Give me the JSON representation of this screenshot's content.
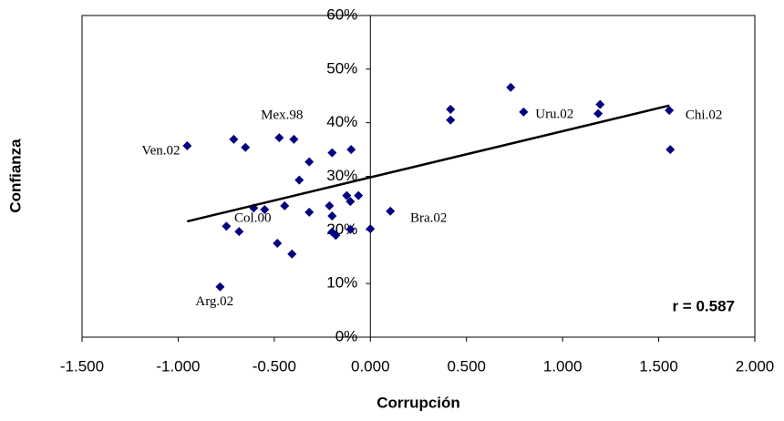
{
  "chart_data": {
    "type": "scatter",
    "x_label": "Corrupción",
    "y_label": "Confianza",
    "color": "#000080",
    "xlim": [
      -1.5,
      2.0
    ],
    "ylim": [
      0,
      60
    ],
    "xticks": [
      {
        "value": -1.5,
        "label": "-1.500"
      },
      {
        "value": -1.0,
        "label": "-1.000"
      },
      {
        "value": -0.5,
        "label": "-0.500"
      },
      {
        "value": 0,
        "label": "0.000"
      },
      {
        "value": 0.5,
        "label": "0.500"
      },
      {
        "value": 1.0,
        "label": "1.000"
      },
      {
        "value": 1.5,
        "label": "1.500"
      },
      {
        "value": 2.0,
        "label": "2.000"
      }
    ],
    "yticks": [
      {
        "value": 0,
        "label": "0%"
      },
      {
        "value": 10,
        "label": "10%"
      },
      {
        "value": 20,
        "label": "20%"
      },
      {
        "value": 30,
        "label": "30%"
      },
      {
        "value": 40,
        "label": "40%"
      },
      {
        "value": 50,
        "label": "50%"
      },
      {
        "value": 60,
        "label": "60%"
      }
    ],
    "x": [
      -0.953,
      -0.711,
      -0.65,
      -0.474,
      -0.398,
      -0.318,
      -0.37,
      -0.199,
      -0.1,
      -0.607,
      -0.55,
      -0.446,
      -0.318,
      -0.213,
      -0.199,
      -0.123,
      -0.104,
      -0.062,
      -0.749,
      -0.683,
      -0.484,
      -0.408,
      -0.199,
      -0.18,
      -0.104,
      0.0,
      0.104,
      -0.782,
      0.417,
      0.417,
      0.73,
      0.797,
      1.195,
      1.185,
      1.555,
      1.56
    ],
    "y": [
      35.7,
      36.9,
      35.4,
      37.2,
      36.9,
      32.7,
      29.3,
      34.4,
      35.0,
      24.1,
      23.8,
      24.5,
      23.3,
      24.5,
      22.6,
      26.4,
      25.3,
      26.4,
      20.7,
      19.7,
      17.5,
      15.5,
      19.6,
      19.0,
      20.1,
      20.2,
      23.5,
      9.4,
      42.5,
      40.5,
      46.6,
      42.0,
      43.4,
      41.7,
      42.3,
      35.0
    ],
    "trendline": {
      "x": [
        -0.953,
        1.555
      ],
      "y": [
        21.6,
        43.2
      ]
    },
    "annotations": [
      {
        "text": "Ven.02",
        "x": -1.09,
        "y": 34.7
      },
      {
        "text": "Mex.98",
        "x": -0.46,
        "y": 41.3
      },
      {
        "text": "Uru.02",
        "x": 0.958,
        "y": 41.5
      },
      {
        "text": "Chi.02",
        "x": 1.735,
        "y": 41.3
      },
      {
        "text": "Col.00",
        "x": -0.612,
        "y": 22.1
      },
      {
        "text": "Bra.02",
        "x": 0.303,
        "y": 22.1
      },
      {
        "text": "Arg.02",
        "x": -0.811,
        "y": 6.5
      }
    ],
    "r_label": "r = 0.587"
  }
}
